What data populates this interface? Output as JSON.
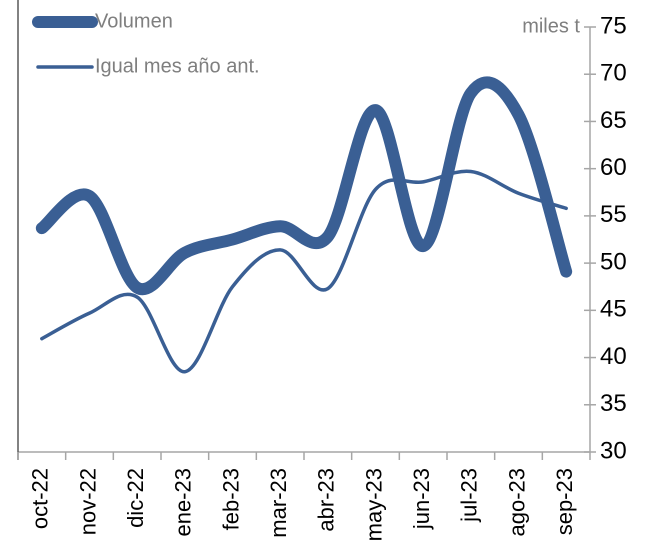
{
  "chart_data": {
    "type": "line",
    "y_axis_label": "miles t",
    "categories": [
      "oct-22",
      "nov-22",
      "dic-22",
      "ene-23",
      "feb-23",
      "mar-23",
      "abr-23",
      "may-23",
      "jun-23",
      "jul-23",
      "ago-23",
      "sep-23"
    ],
    "series": [
      {
        "name": "Volumen",
        "color": "#3a5f94",
        "values": [
          53.7,
          57.1,
          47.4,
          51.1,
          52.5,
          53.9,
          52.8,
          66.2,
          51.8,
          68,
          65.7,
          49.1
        ]
      },
      {
        "name": "Igual mes año ant.",
        "color": "#3a5f94",
        "values": [
          42,
          44.7,
          46.4,
          38.5,
          47.5,
          51.4,
          47.3,
          57.8,
          58.6,
          59.7,
          57.4,
          55.8
        ]
      }
    ],
    "ylim": [
      30,
      75
    ],
    "yticks": [
      30,
      35,
      40,
      45,
      50,
      55,
      60,
      65,
      70,
      75
    ],
    "smooth": true,
    "legend": "top-left"
  }
}
